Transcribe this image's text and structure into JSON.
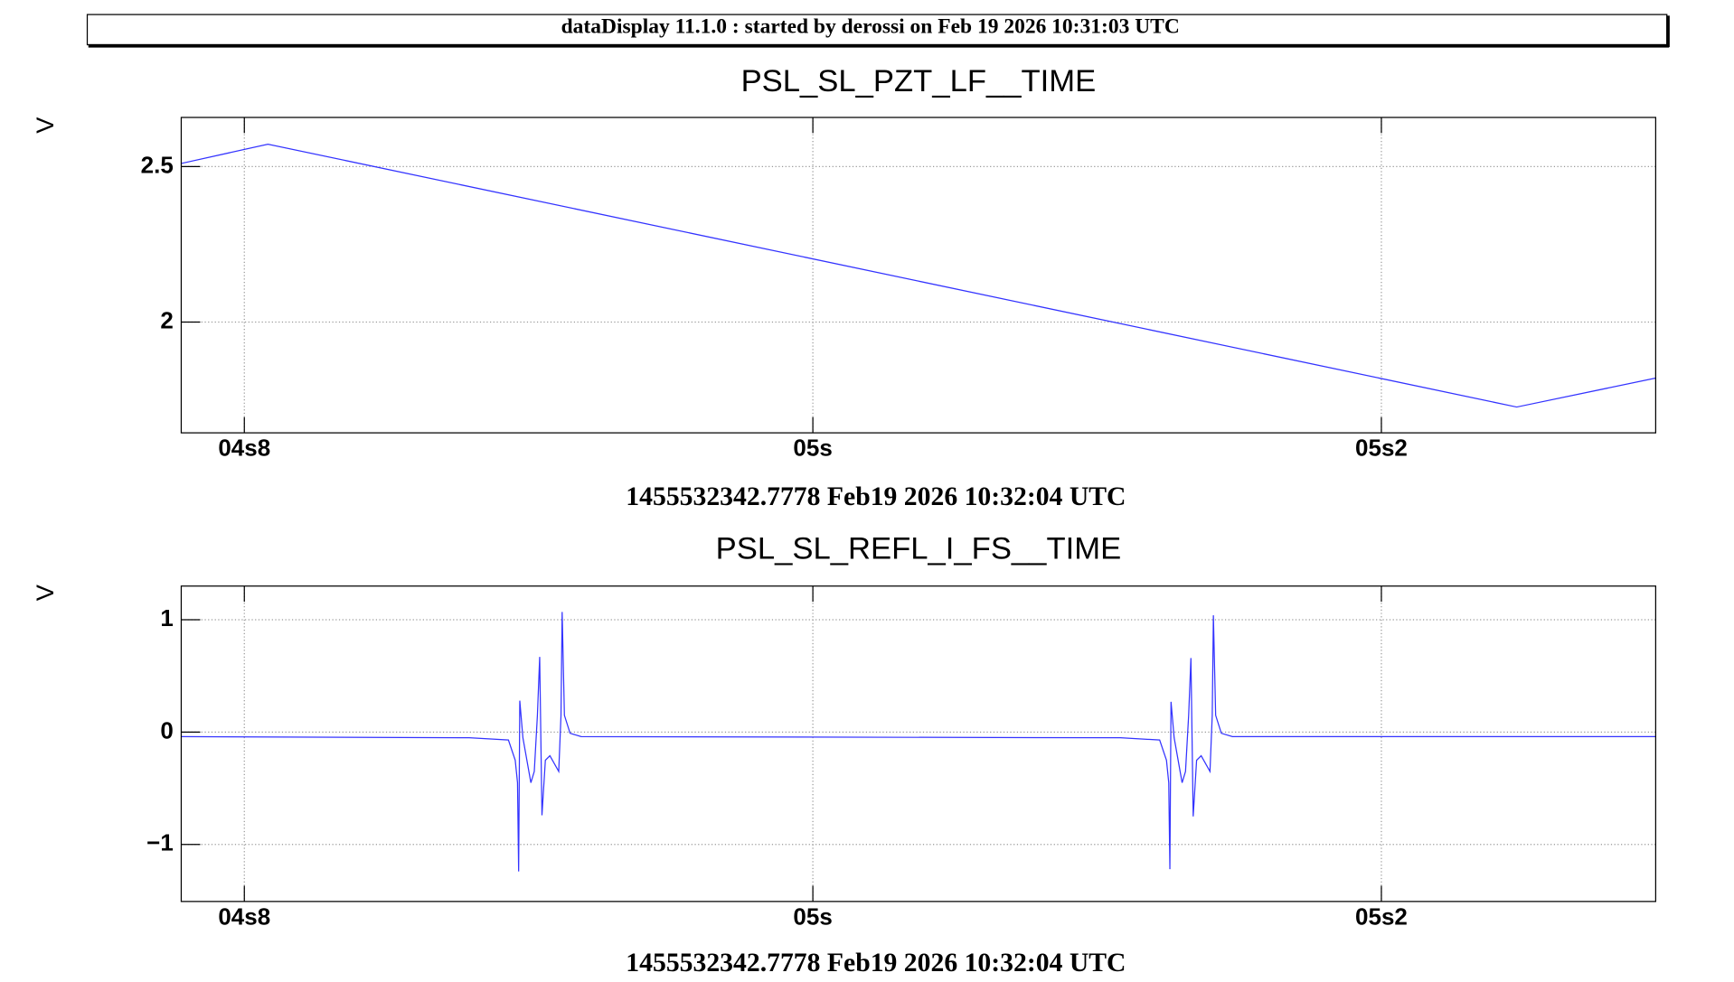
{
  "header": {
    "title": "dataDisplay 11.1.0 : started by derossi on Feb 19 2026 10:31:03 UTC"
  },
  "chart_data": [
    {
      "type": "line",
      "title": "PSL_SL_PZT_LF__TIME",
      "ylabel": "V",
      "xlabel": "1455532342.7778 Feb19 2026 10:32:04 UTC",
      "x": [
        4.7778,
        4.8083,
        5.2476,
        5.2965
      ],
      "series": [
        {
          "color": "#3333ff",
          "values": [
            2.51,
            2.572,
            1.727,
            1.82
          ]
        }
      ],
      "xlim": [
        4.7778,
        5.2965
      ],
      "ylim": [
        1.644,
        2.658
      ],
      "xticks": [
        {
          "value": 4.8,
          "label": "04s8"
        },
        {
          "value": 5.0,
          "label": "05s"
        },
        {
          "value": 5.2,
          "label": "05s2"
        }
      ],
      "yticks": [
        2,
        2.5
      ],
      "grid": true
    },
    {
      "type": "line",
      "title": "PSL_SL_REFL_I_FS__TIME",
      "ylabel": "V",
      "xlabel": "1455532342.7778 Feb19 2026 10:32:04 UTC",
      "x": [
        4.7778,
        4.8791,
        4.8929,
        4.8953,
        4.8961,
        4.8965,
        4.8969,
        4.898,
        4.9008,
        4.902,
        4.9031,
        4.9039,
        4.9047,
        4.9059,
        4.9075,
        4.9106,
        4.9114,
        4.9118,
        4.9126,
        4.9146,
        4.9185,
        5.1082,
        5.122,
        5.1244,
        5.1252,
        5.1256,
        5.126,
        5.1271,
        5.1299,
        5.1311,
        5.1322,
        5.133,
        5.1338,
        5.135,
        5.1366,
        5.1397,
        5.1405,
        5.1409,
        5.1417,
        5.1437,
        5.1476,
        5.2965
      ],
      "series": [
        {
          "color": "#3333ff",
          "values": [
            -0.04,
            -0.05,
            -0.07,
            -0.25,
            -0.45,
            -1.24,
            0.28,
            -0.05,
            -0.45,
            -0.35,
            0.15,
            0.67,
            -0.74,
            -0.25,
            -0.21,
            -0.35,
            0.15,
            1.07,
            0.15,
            -0.01,
            -0.04,
            -0.05,
            -0.07,
            -0.25,
            -0.45,
            -1.22,
            0.27,
            -0.05,
            -0.45,
            -0.35,
            0.15,
            0.66,
            -0.75,
            -0.25,
            -0.21,
            -0.35,
            0.15,
            1.04,
            0.15,
            -0.01,
            -0.04,
            -0.04
          ]
        }
      ],
      "xlim": [
        4.7778,
        5.2965
      ],
      "ylim": [
        -1.507,
        1.3
      ],
      "xticks": [
        {
          "value": 4.8,
          "label": "04s8"
        },
        {
          "value": 5.0,
          "label": "05s"
        },
        {
          "value": 5.2,
          "label": "05s2"
        }
      ],
      "yticks": [
        {
          "value": -1,
          "label": "−1"
        },
        0,
        1
      ],
      "grid": true
    }
  ]
}
